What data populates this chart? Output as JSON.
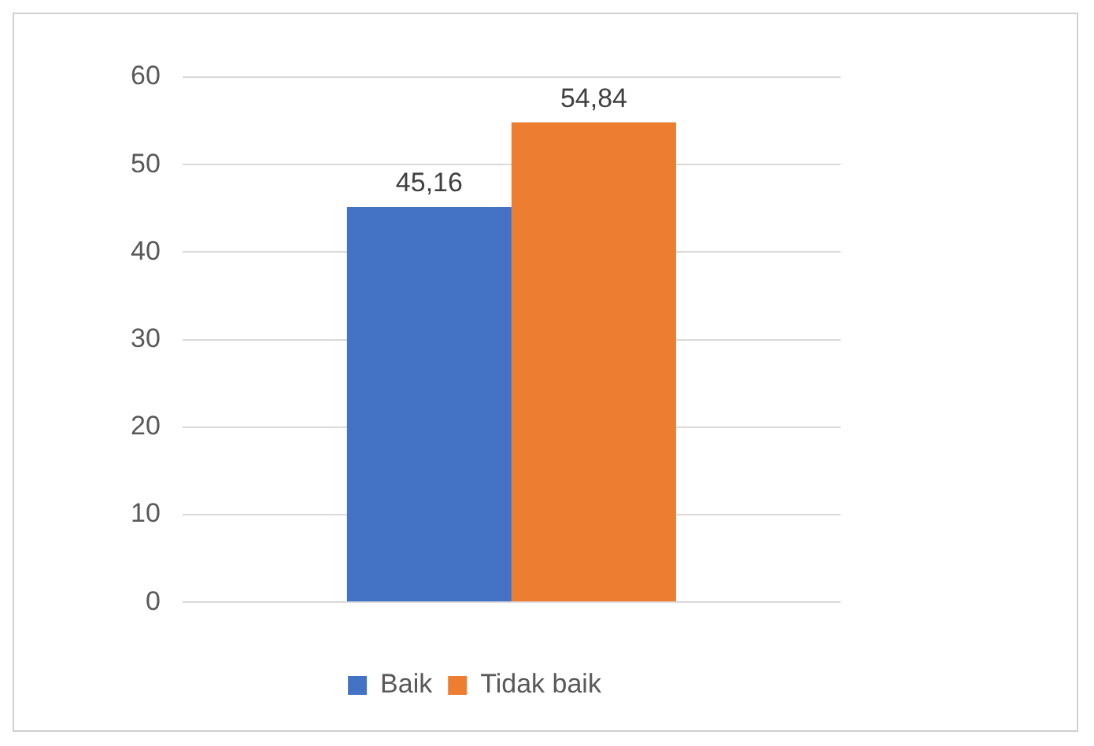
{
  "chart_data": {
    "type": "bar",
    "categories": [
      null
    ],
    "series": [
      {
        "name": "Baik",
        "color": "#4472c4",
        "values": [
          45.16
        ]
      },
      {
        "name": "Tidak baik",
        "color": "#ed7d31",
        "values": [
          54.84
        ]
      }
    ],
    "value_labels": [
      [
        "45,16"
      ],
      [
        "54,84"
      ]
    ],
    "ylim": [
      0,
      60
    ],
    "yticks": [
      0,
      10,
      20,
      30,
      40,
      50,
      60
    ],
    "grid": "y",
    "legend": "bottom"
  }
}
